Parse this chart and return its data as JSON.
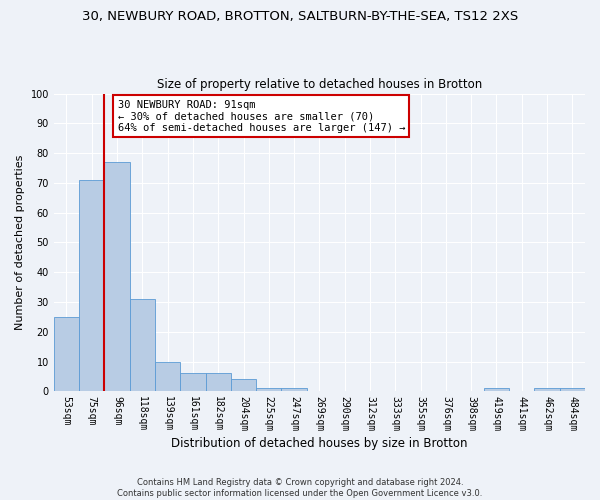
{
  "title1": "30, NEWBURY ROAD, BROTTON, SALTBURN-BY-THE-SEA, TS12 2XS",
  "title2": "Size of property relative to detached houses in Brotton",
  "xlabel": "Distribution of detached houses by size in Brotton",
  "ylabel": "Number of detached properties",
  "categories": [
    "53sqm",
    "75sqm",
    "96sqm",
    "118sqm",
    "139sqm",
    "161sqm",
    "182sqm",
    "204sqm",
    "225sqm",
    "247sqm",
    "269sqm",
    "290sqm",
    "312sqm",
    "333sqm",
    "355sqm",
    "376sqm",
    "398sqm",
    "419sqm",
    "441sqm",
    "462sqm",
    "484sqm"
  ],
  "values": [
    25,
    71,
    77,
    31,
    10,
    6,
    6,
    4,
    1,
    1,
    0,
    0,
    0,
    0,
    0,
    0,
    0,
    1,
    0,
    1,
    1
  ],
  "bar_color": "#b8cce4",
  "bar_edge_color": "#5b9bd5",
  "vline_x_index": 1.5,
  "vline_color": "#cc0000",
  "annotation_title": "30 NEWBURY ROAD: 91sqm",
  "annotation_line1": "← 30% of detached houses are smaller (70)",
  "annotation_line2": "64% of semi-detached houses are larger (147) →",
  "annotation_box_color": "#ffffff",
  "annotation_box_edge_color": "#cc0000",
  "ylim": [
    0,
    100
  ],
  "yticks": [
    0,
    10,
    20,
    30,
    40,
    50,
    60,
    70,
    80,
    90,
    100
  ],
  "footer1": "Contains HM Land Registry data © Crown copyright and database right 2024.",
  "footer2": "Contains public sector information licensed under the Open Government Licence v3.0.",
  "background_color": "#eef2f8",
  "grid_color": "#ffffff",
  "title1_fontsize": 9.5,
  "title2_fontsize": 8.5,
  "xlabel_fontsize": 8.5,
  "ylabel_fontsize": 8,
  "tick_fontsize": 7,
  "footer_fontsize": 6,
  "annot_fontsize": 7.5
}
